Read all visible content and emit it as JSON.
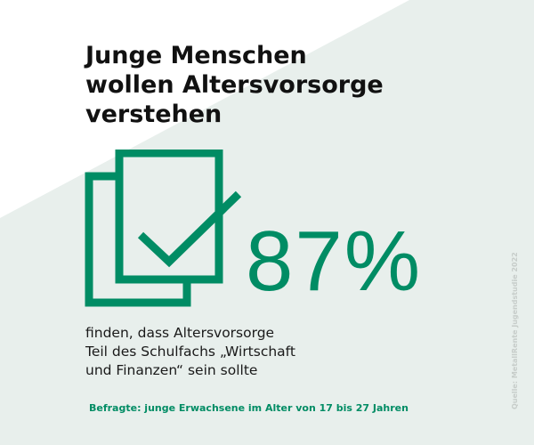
{
  "headline": {
    "lines": [
      "Junge Menschen",
      "wollen Altersvorsorge",
      "verstehen"
    ]
  },
  "stat": {
    "value": "87%",
    "description_lines": [
      "finden, dass Altersvorsorge",
      "Teil des Schulfachs „Wirtschaft",
      "und Finanzen“ sein sollte"
    ]
  },
  "respondents": "Befragte: junge Erwachsene im Alter von 17 bis 27 Jahren",
  "source": "Quelle: MetallRente Jugendstudie 2022",
  "icon": {
    "name": "document-checkmark-icon"
  },
  "colors": {
    "background_tint": "#e8efec",
    "background_light": "#ffffff",
    "accent_green": "#008c64",
    "text_dark": "#111111",
    "source_gray": "#c7cdca"
  }
}
